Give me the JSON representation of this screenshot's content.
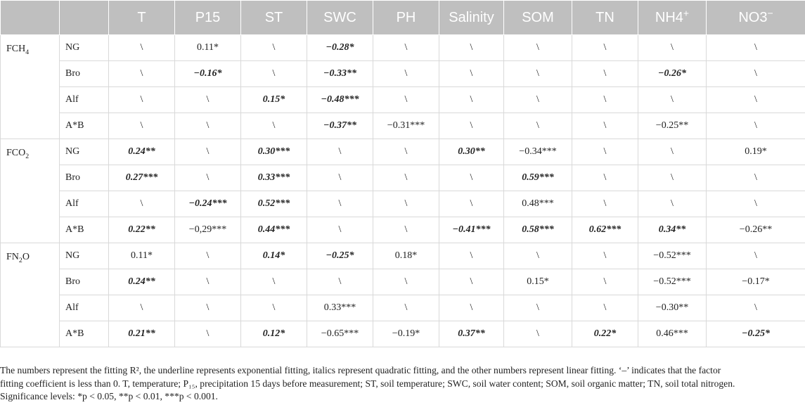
{
  "columns": [
    {
      "text": "",
      "sup": ""
    },
    {
      "text": "",
      "sup": ""
    },
    {
      "text": "T",
      "sup": ""
    },
    {
      "text": "P15",
      "sup": ""
    },
    {
      "text": "ST",
      "sup": ""
    },
    {
      "text": "SWC",
      "sup": ""
    },
    {
      "text": "PH",
      "sup": ""
    },
    {
      "text": "Salinity",
      "sup": ""
    },
    {
      "text": "SOM",
      "sup": ""
    },
    {
      "text": "TN",
      "sup": ""
    },
    {
      "text": "NH4",
      "sup": "+"
    },
    {
      "text": "NO3",
      "sup": "−"
    }
  ],
  "groups": [
    {
      "label": "FCH",
      "label_sub": "4",
      "rows": [
        {
          "treatment": "NG",
          "cells": [
            {
              "v": "\\",
              "b": false
            },
            {
              "v": "0.11*",
              "b": false
            },
            {
              "v": "\\",
              "b": false
            },
            {
              "v": "−0.28*",
              "b": true
            },
            {
              "v": "\\",
              "b": false
            },
            {
              "v": "\\",
              "b": false
            },
            {
              "v": "\\",
              "b": false
            },
            {
              "v": "\\",
              "b": false
            },
            {
              "v": "\\",
              "b": false
            },
            {
              "v": "\\",
              "b": false
            }
          ]
        },
        {
          "treatment": "Bro",
          "cells": [
            {
              "v": "\\",
              "b": false
            },
            {
              "v": "−0.16*",
              "b": true
            },
            {
              "v": "\\",
              "b": false
            },
            {
              "v": "−0.33**",
              "b": true
            },
            {
              "v": "\\",
              "b": false
            },
            {
              "v": "\\",
              "b": false
            },
            {
              "v": "\\",
              "b": false
            },
            {
              "v": "\\",
              "b": false
            },
            {
              "v": "−0.26*",
              "b": true
            },
            {
              "v": "\\",
              "b": false
            }
          ]
        },
        {
          "treatment": "Alf",
          "cells": [
            {
              "v": "\\",
              "b": false
            },
            {
              "v": "\\",
              "b": false
            },
            {
              "v": "0.15*",
              "b": true
            },
            {
              "v": "−0.48***",
              "b": true
            },
            {
              "v": "\\",
              "b": false
            },
            {
              "v": "\\",
              "b": false
            },
            {
              "v": "\\",
              "b": false
            },
            {
              "v": "\\",
              "b": false
            },
            {
              "v": "\\",
              "b": false
            },
            {
              "v": "\\",
              "b": false
            }
          ]
        },
        {
          "treatment": "A*B",
          "cells": [
            {
              "v": "\\",
              "b": false
            },
            {
              "v": "\\",
              "b": false
            },
            {
              "v": "\\",
              "b": false
            },
            {
              "v": "−0.37**",
              "b": true
            },
            {
              "v": "−0.31***",
              "b": false
            },
            {
              "v": "\\",
              "b": false
            },
            {
              "v": "\\",
              "b": false
            },
            {
              "v": "\\",
              "b": false
            },
            {
              "v": "−0.25**",
              "b": false
            },
            {
              "v": "\\",
              "b": false
            }
          ]
        }
      ]
    },
    {
      "label": "FCO",
      "label_sub": "2",
      "rows": [
        {
          "treatment": "NG",
          "cells": [
            {
              "v": "0.24**",
              "b": true
            },
            {
              "v": "\\",
              "b": false
            },
            {
              "v": "0.30***",
              "b": true
            },
            {
              "v": "\\",
              "b": false
            },
            {
              "v": "\\",
              "b": false
            },
            {
              "v": "0.30**",
              "b": true
            },
            {
              "v": "−0.34***",
              "b": false
            },
            {
              "v": "\\",
              "b": false
            },
            {
              "v": "\\",
              "b": false
            },
            {
              "v": "0.19*",
              "b": false
            }
          ]
        },
        {
          "treatment": "Bro",
          "cells": [
            {
              "v": "0.27***",
              "b": true
            },
            {
              "v": "\\",
              "b": false
            },
            {
              "v": "0.33***",
              "b": true
            },
            {
              "v": "\\",
              "b": false
            },
            {
              "v": "\\",
              "b": false
            },
            {
              "v": "\\",
              "b": false
            },
            {
              "v": "0.59***",
              "b": true
            },
            {
              "v": "\\",
              "b": false
            },
            {
              "v": "\\",
              "b": false
            },
            {
              "v": "\\",
              "b": false
            }
          ]
        },
        {
          "treatment": "Alf",
          "cells": [
            {
              "v": "\\",
              "b": false
            },
            {
              "v": "−0.24***",
              "b": true
            },
            {
              "v": "0.52***",
              "b": true
            },
            {
              "v": "\\",
              "b": false
            },
            {
              "v": "\\",
              "b": false
            },
            {
              "v": "\\",
              "b": false
            },
            {
              "v": "0.48***",
              "b": false
            },
            {
              "v": "\\",
              "b": false
            },
            {
              "v": "\\",
              "b": false
            },
            {
              "v": "\\",
              "b": false
            }
          ]
        },
        {
          "treatment": "A*B",
          "cells": [
            {
              "v": "0.22**",
              "b": true
            },
            {
              "v": "−0,29***",
              "b": false
            },
            {
              "v": "0.44***",
              "b": true
            },
            {
              "v": "\\",
              "b": false
            },
            {
              "v": "\\",
              "b": false
            },
            {
              "v": "−0.41***",
              "b": true
            },
            {
              "v": "0.58***",
              "b": true
            },
            {
              "v": "0.62***",
              "b": true
            },
            {
              "v": "0.34**",
              "b": true
            },
            {
              "v": "−0.26**",
              "b": false
            }
          ]
        }
      ]
    },
    {
      "label": "FN",
      "label_sub": "2",
      "label_after": "O",
      "rows": [
        {
          "treatment": "NG",
          "cells": [
            {
              "v": "0.11*",
              "b": false
            },
            {
              "v": "\\",
              "b": false
            },
            {
              "v": "0.14*",
              "b": true
            },
            {
              "v": "−0.25*",
              "b": true
            },
            {
              "v": "0.18*",
              "b": false
            },
            {
              "v": "\\",
              "b": false
            },
            {
              "v": "\\",
              "b": false
            },
            {
              "v": "\\",
              "b": false
            },
            {
              "v": "−0.52***",
              "b": false
            },
            {
              "v": "\\",
              "b": false
            }
          ]
        },
        {
          "treatment": "Bro",
          "cells": [
            {
              "v": "0.24**",
              "b": true
            },
            {
              "v": "\\",
              "b": false
            },
            {
              "v": "\\",
              "b": false
            },
            {
              "v": "\\",
              "b": false
            },
            {
              "v": "\\",
              "b": false
            },
            {
              "v": "\\",
              "b": false
            },
            {
              "v": "0.15*",
              "b": false
            },
            {
              "v": "\\",
              "b": false
            },
            {
              "v": "−0.52***",
              "b": false
            },
            {
              "v": "−0.17*",
              "b": false
            }
          ]
        },
        {
          "treatment": "Alf",
          "cells": [
            {
              "v": "\\",
              "b": false
            },
            {
              "v": "\\",
              "b": false
            },
            {
              "v": "\\",
              "b": false
            },
            {
              "v": "0.33***",
              "b": false
            },
            {
              "v": "\\",
              "b": false
            },
            {
              "v": "\\",
              "b": false
            },
            {
              "v": "\\",
              "b": false
            },
            {
              "v": "\\",
              "b": false
            },
            {
              "v": "−0.30**",
              "b": false
            },
            {
              "v": "\\",
              "b": false
            }
          ]
        },
        {
          "treatment": "A*B",
          "cells": [
            {
              "v": "0.21**",
              "b": true
            },
            {
              "v": "\\",
              "b": false
            },
            {
              "v": "0.12*",
              "b": true
            },
            {
              "v": "−0.65***",
              "b": false
            },
            {
              "v": "−0.19*",
              "b": false
            },
            {
              "v": "0.37**",
              "b": true
            },
            {
              "v": "\\",
              "b": false
            },
            {
              "v": "0.22*",
              "b": true
            },
            {
              "v": "0.46***",
              "b": false
            },
            {
              "v": "−0.25*",
              "b": true
            }
          ]
        }
      ]
    }
  ],
  "footnote": {
    "line1": "The numbers represent the fitting R², the underline represents exponential fitting, italics represent quadratic fitting, and the other numbers represent linear fitting. ‘–’ indicates that the factor",
    "line2": "fitting coefficient is less than 0. T, temperature; P₁₅, precipitation 15 days before measurement; ST, soil temperature; SWC, soil water content; SOM, soil organic matter; TN, soil total nitrogen.",
    "line3": "Significance levels: *p < 0.05, **p < 0.01, ***p < 0.001."
  }
}
